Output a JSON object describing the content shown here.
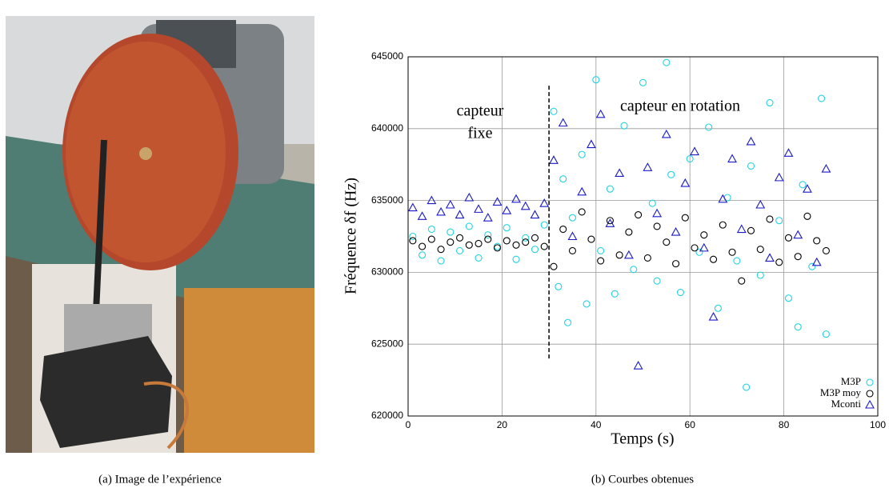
{
  "captions": [
    "(a) Image de l’expérience",
    "(b) Courbes obtenues"
  ],
  "chart_data": {
    "type": "scatter",
    "xlabel": "Temps (s)",
    "ylabel": "Fréquence δf (Hz)",
    "xlim": [
      0,
      100
    ],
    "xticks": [
      0,
      20,
      40,
      60,
      80,
      100
    ],
    "ylim": [
      620000,
      645000
    ],
    "yticks": [
      620000,
      625000,
      630000,
      635000,
      640000,
      645000
    ],
    "grid": true,
    "legend": "lower right",
    "annotations": [
      "capteur",
      "fixe",
      "capteur en rotation"
    ],
    "vline": {
      "x": 30,
      "y": [
        624000,
        643000
      ]
    },
    "series": [
      {
        "name": "M3P",
        "color": "#22d3e0",
        "marker": "circle",
        "x": [
          1,
          3,
          5,
          7,
          9,
          11,
          13,
          15,
          17,
          19,
          21,
          23,
          25,
          27,
          29,
          31,
          32,
          33,
          34,
          35,
          37,
          38,
          40,
          41,
          43,
          44,
          46,
          48,
          50,
          52,
          53,
          55,
          56,
          58,
          60,
          62,
          64,
          66,
          68,
          70,
          72,
          73,
          75,
          77,
          79,
          81,
          83,
          84,
          86,
          88,
          89
        ],
        "values": [
          632500,
          631200,
          633000,
          630800,
          632800,
          631500,
          633200,
          631000,
          632600,
          631800,
          633100,
          630900,
          632400,
          631600,
          633300,
          641200,
          629000,
          636500,
          626500,
          633800,
          638200,
          627800,
          643400,
          631500,
          635800,
          628500,
          640200,
          630200,
          643200,
          634800,
          629400,
          644600,
          636800,
          628600,
          637900,
          631400,
          640100,
          627500,
          635200,
          630800,
          622000,
          637400,
          629800,
          641800,
          633600,
          628200,
          626200,
          636100,
          630400,
          642100,
          625700
        ]
      },
      {
        "name": "M3P moy",
        "color": "#000000",
        "marker": "circle",
        "x": [
          1,
          3,
          5,
          7,
          9,
          11,
          13,
          15,
          17,
          19,
          21,
          23,
          25,
          27,
          29,
          31,
          33,
          35,
          37,
          39,
          41,
          43,
          45,
          47,
          49,
          51,
          53,
          55,
          57,
          59,
          61,
          63,
          65,
          67,
          69,
          71,
          73,
          75,
          77,
          79,
          81,
          83,
          85,
          87,
          89
        ],
        "values": [
          632200,
          631800,
          632300,
          631600,
          632100,
          632400,
          631900,
          632000,
          632300,
          631700,
          632200,
          631900,
          632100,
          632400,
          631800,
          630400,
          633000,
          631500,
          634200,
          632300,
          630800,
          633600,
          631200,
          632800,
          634000,
          631000,
          633200,
          632100,
          630600,
          633800,
          631700,
          632600,
          630900,
          633300,
          631400,
          629400,
          632900,
          631600,
          633700,
          630700,
          632400,
          631100,
          633900,
          632200,
          631500
        ]
      },
      {
        "name": "Mconti",
        "color": "#1a1ac8",
        "marker": "triangle",
        "x": [
          1,
          3,
          5,
          7,
          9,
          11,
          13,
          15,
          17,
          19,
          21,
          23,
          25,
          27,
          29,
          31,
          33,
          35,
          37,
          39,
          41,
          43,
          45,
          47,
          49,
          51,
          53,
          55,
          57,
          59,
          61,
          63,
          65,
          67,
          69,
          71,
          73,
          75,
          77,
          79,
          81,
          83,
          85,
          87,
          89
        ],
        "values": [
          634500,
          633900,
          635000,
          634200,
          634700,
          634000,
          635200,
          634400,
          633800,
          634900,
          634300,
          635100,
          634600,
          634000,
          634800,
          637800,
          640400,
          632500,
          635600,
          638900,
          641000,
          633400,
          636900,
          631200,
          623500,
          637300,
          634100,
          639600,
          632800,
          636200,
          638400,
          631700,
          626900,
          635100,
          637900,
          633000,
          639100,
          634700,
          631000,
          636600,
          638300,
          632600,
          635800,
          630700,
          637200
        ]
      }
    ]
  }
}
